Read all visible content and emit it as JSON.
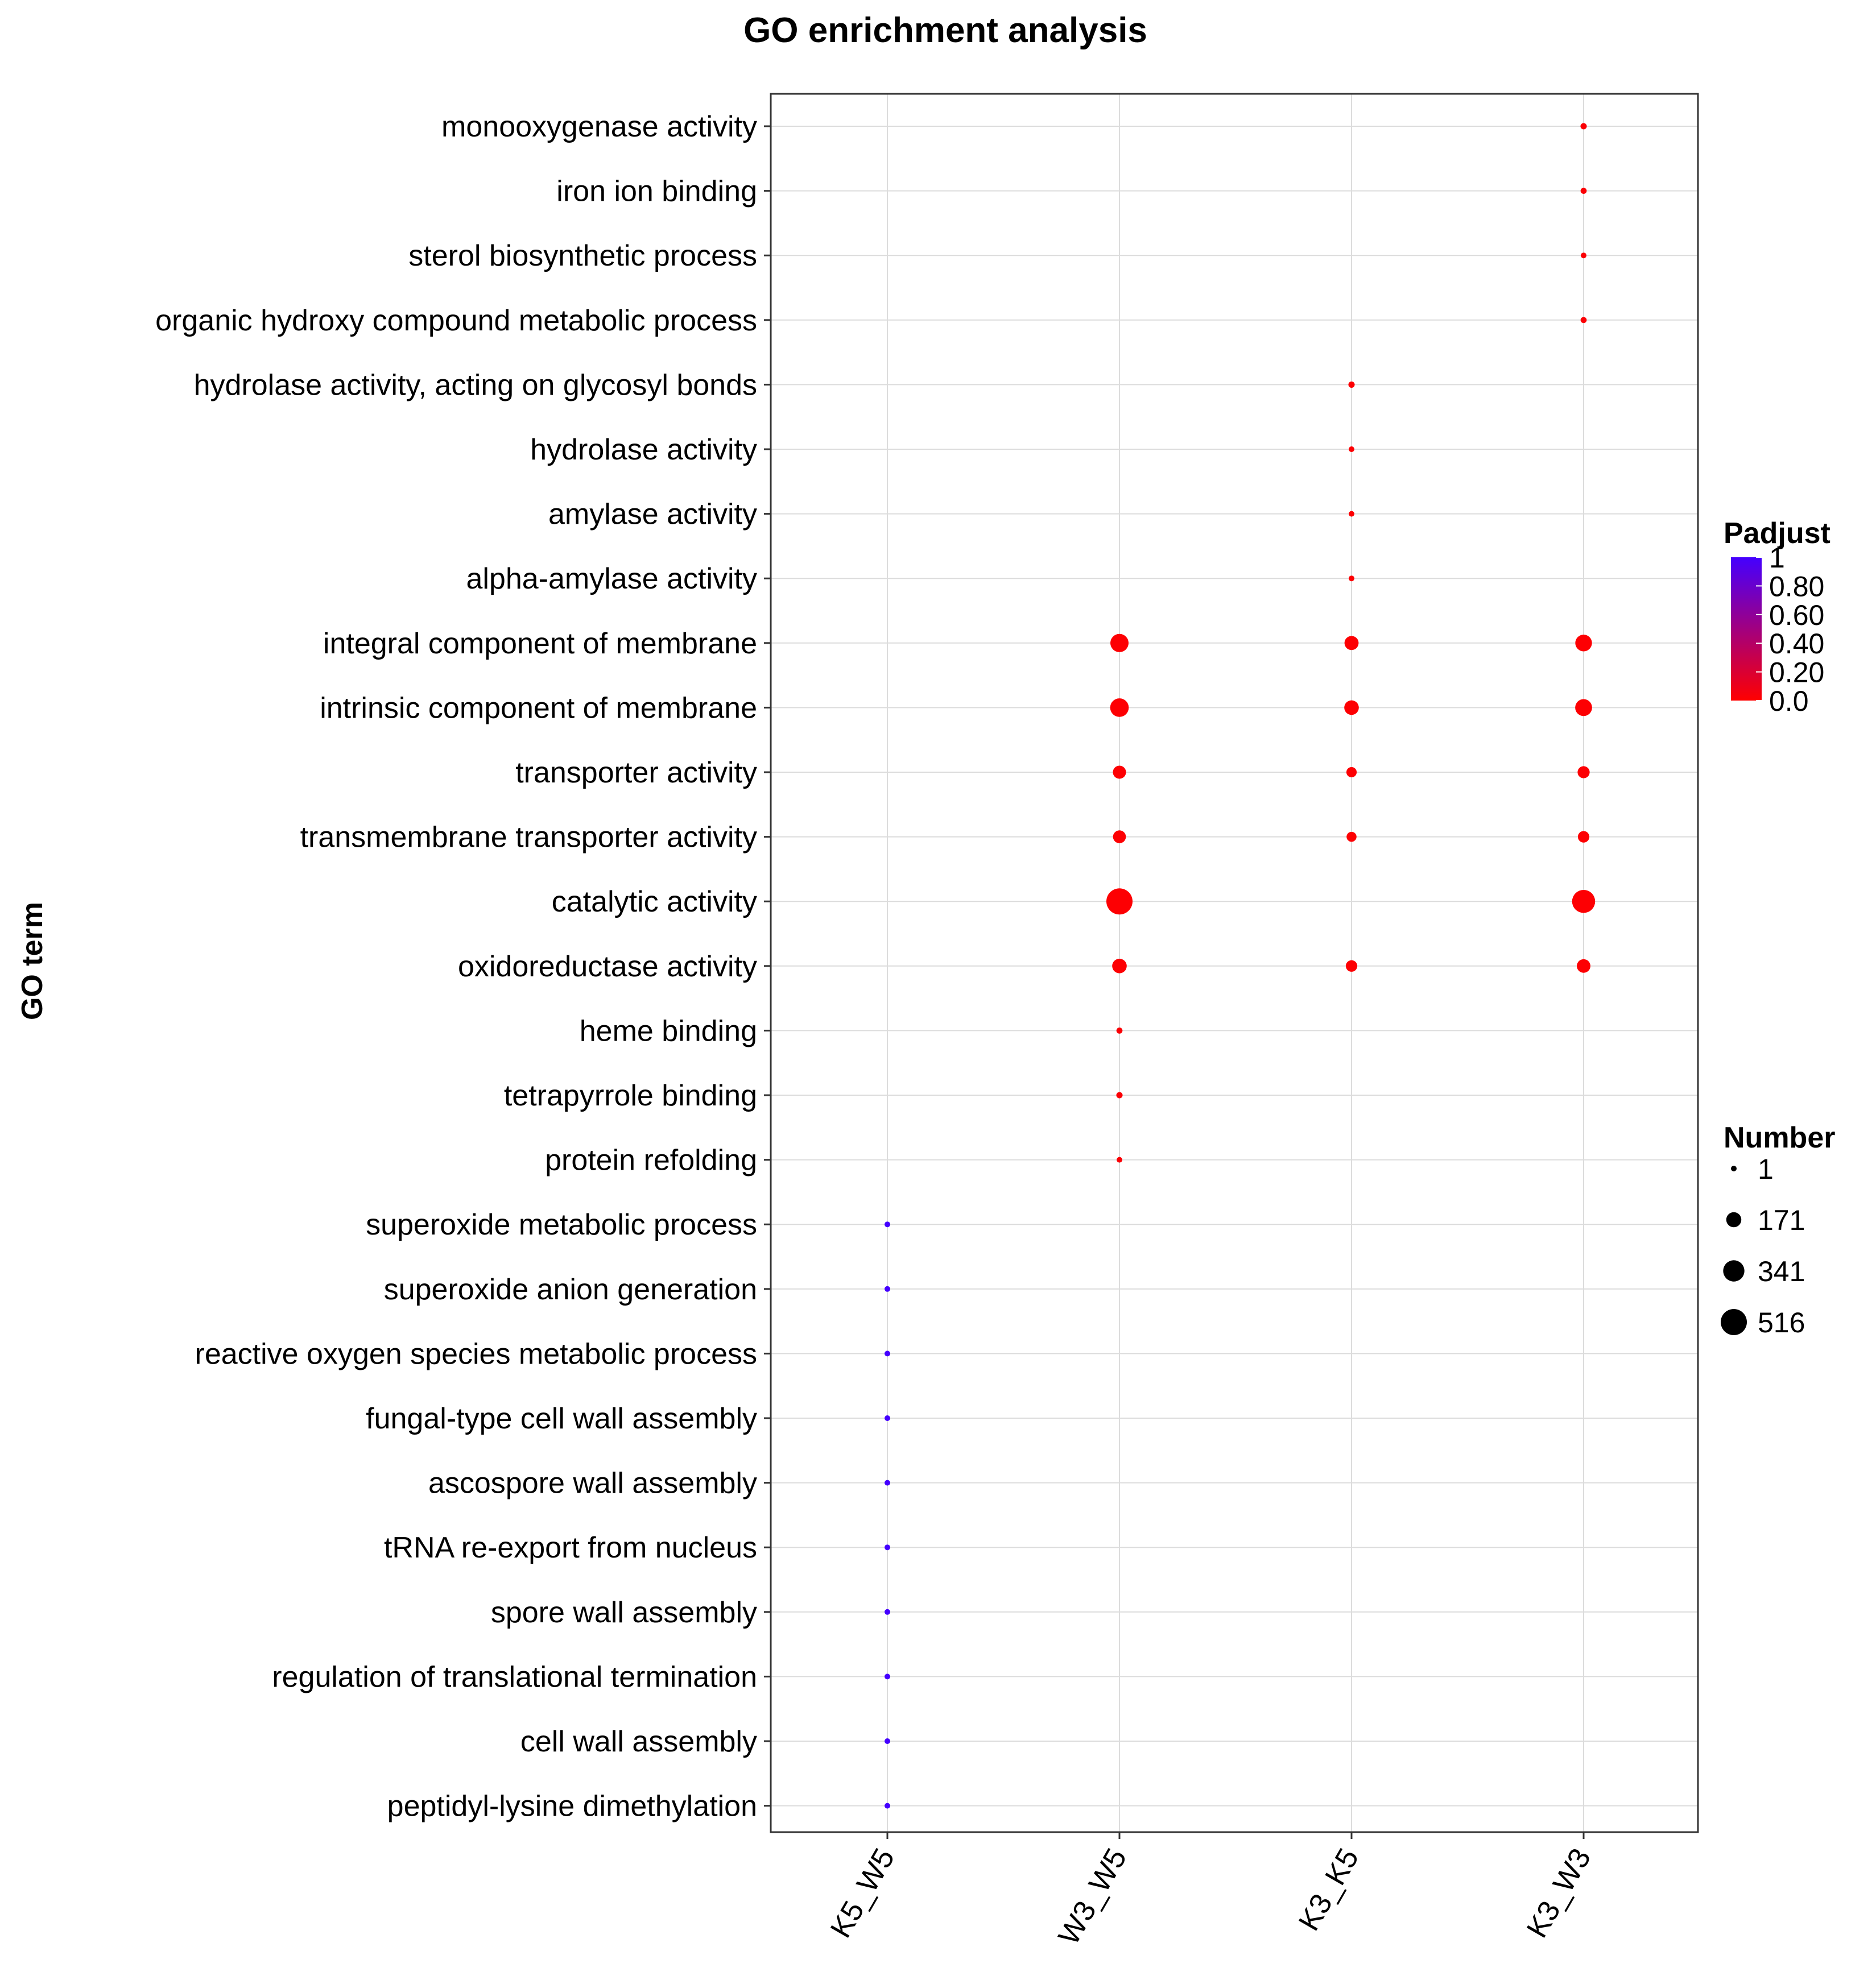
{
  "chart_data": {
    "type": "scatter",
    "title": "GO enrichment analysis",
    "xlabel": "",
    "ylabel": "GO term",
    "categories_x": [
      "K5_W5",
      "W3_W5",
      "K3_K5",
      "K3_W3"
    ],
    "categories_y": [
      "monooxygenase activity",
      "iron ion binding",
      "sterol biosynthetic process",
      "organic hydroxy compound metabolic process",
      "hydrolase activity, acting on glycosyl bonds",
      "hydrolase activity",
      "amylase activity",
      "alpha-amylase activity",
      "integral component of membrane",
      "intrinsic component of membrane",
      "transporter activity",
      "transmembrane transporter activity",
      "catalytic activity",
      "oxidoreductase activity",
      "heme binding",
      "tetrapyrrole binding",
      "protein refolding",
      "superoxide metabolic process",
      "superoxide anion generation",
      "reactive oxygen species metabolic process",
      "fungal-type cell wall assembly",
      "ascospore wall assembly",
      "tRNA re-export from nucleus",
      "spore wall assembly",
      "regulation of translational termination",
      "cell wall assembly",
      "peptidyl-lysine dimethylation"
    ],
    "points": [
      {
        "x": "K3_W3",
        "y": "monooxygenase activity",
        "number": 30,
        "padjust": 0.02
      },
      {
        "x": "K3_W3",
        "y": "iron ion binding",
        "number": 28,
        "padjust": 0.02
      },
      {
        "x": "K3_W3",
        "y": "sterol biosynthetic process",
        "number": 20,
        "padjust": 0.02
      },
      {
        "x": "K3_W3",
        "y": "organic hydroxy compound metabolic process",
        "number": 28,
        "padjust": 0.02
      },
      {
        "x": "K3_K5",
        "y": "hydrolase activity, acting on glycosyl bonds",
        "number": 30,
        "padjust": 0.01
      },
      {
        "x": "K3_K5",
        "y": "hydrolase activity",
        "number": 22,
        "padjust": 0.01
      },
      {
        "x": "K3_K5",
        "y": "amylase activity",
        "number": 8,
        "padjust": 0.01
      },
      {
        "x": "K3_K5",
        "y": "alpha-amylase activity",
        "number": 6,
        "padjust": 0.01
      },
      {
        "x": "W3_W5",
        "y": "integral component of membrane",
        "number": 250,
        "padjust": 0.01
      },
      {
        "x": "K3_K5",
        "y": "integral component of membrane",
        "number": 150,
        "padjust": 0.01
      },
      {
        "x": "K3_W3",
        "y": "integral component of membrane",
        "number": 210,
        "padjust": 0.01
      },
      {
        "x": "W3_W5",
        "y": "intrinsic component of membrane",
        "number": 260,
        "padjust": 0.01
      },
      {
        "x": "K3_K5",
        "y": "intrinsic component of membrane",
        "number": 160,
        "padjust": 0.01
      },
      {
        "x": "K3_W3",
        "y": "intrinsic component of membrane",
        "number": 215,
        "padjust": 0.01
      },
      {
        "x": "W3_W5",
        "y": "transporter activity",
        "number": 130,
        "padjust": 0.01
      },
      {
        "x": "K3_K5",
        "y": "transporter activity",
        "number": 80,
        "padjust": 0.01
      },
      {
        "x": "K3_W3",
        "y": "transporter activity",
        "number": 110,
        "padjust": 0.01
      },
      {
        "x": "W3_W5",
        "y": "transmembrane transporter activity",
        "number": 125,
        "padjust": 0.01
      },
      {
        "x": "K3_K5",
        "y": "transmembrane transporter activity",
        "number": 75,
        "padjust": 0.01
      },
      {
        "x": "K3_W3",
        "y": "transmembrane transporter activity",
        "number": 100,
        "padjust": 0.01
      },
      {
        "x": "W3_W5",
        "y": "catalytic activity",
        "number": 516,
        "padjust": 0.01
      },
      {
        "x": "K3_W3",
        "y": "catalytic activity",
        "number": 400,
        "padjust": 0.01
      },
      {
        "x": "W3_W5",
        "y": "oxidoreductase activity",
        "number": 160,
        "padjust": 0.01
      },
      {
        "x": "K3_K5",
        "y": "oxidoreductase activity",
        "number": 100,
        "padjust": 0.01
      },
      {
        "x": "K3_W3",
        "y": "oxidoreductase activity",
        "number": 140,
        "padjust": 0.01
      },
      {
        "x": "W3_W5",
        "y": "heme binding",
        "number": 28,
        "padjust": 0.02
      },
      {
        "x": "W3_W5",
        "y": "tetrapyrrole binding",
        "number": 30,
        "padjust": 0.02
      },
      {
        "x": "W3_W5",
        "y": "protein refolding",
        "number": 7,
        "padjust": 0.02
      },
      {
        "x": "K5_W5",
        "y": "superoxide metabolic process",
        "number": 3,
        "padjust": 1.0
      },
      {
        "x": "K5_W5",
        "y": "superoxide anion generation",
        "number": 2,
        "padjust": 1.0
      },
      {
        "x": "K5_W5",
        "y": "reactive oxygen species metabolic process",
        "number": 3,
        "padjust": 1.0
      },
      {
        "x": "K5_W5",
        "y": "fungal-type cell wall assembly",
        "number": 2,
        "padjust": 1.0
      },
      {
        "x": "K5_W5",
        "y": "ascospore wall assembly",
        "number": 2,
        "padjust": 1.0
      },
      {
        "x": "K5_W5",
        "y": "tRNA re-export from nucleus",
        "number": 1,
        "padjust": 1.0
      },
      {
        "x": "K5_W5",
        "y": "spore wall assembly",
        "number": 2,
        "padjust": 1.0
      },
      {
        "x": "K5_W5",
        "y": "regulation of translational termination",
        "number": 1,
        "padjust": 1.0
      },
      {
        "x": "K5_W5",
        "y": "cell wall assembly",
        "number": 3,
        "padjust": 1.0
      },
      {
        "x": "K5_W5",
        "y": "peptidyl-lysine dimethylation",
        "number": 1,
        "padjust": 1.0
      }
    ],
    "size_scale": {
      "min": 1,
      "max": 516
    },
    "color_scale": {
      "min": 0.0,
      "max": 1,
      "low_color": "#ff0000",
      "high_color": "#4400ff"
    },
    "legend_color": {
      "title": "Padjust",
      "labels": [
        "1",
        "0.80",
        "0.60",
        "0.40",
        "0.20",
        "0.0"
      ],
      "values": [
        1,
        0.8,
        0.6,
        0.4,
        0.2,
        0.0
      ]
    },
    "legend_size": {
      "title": "Number",
      "labels": [
        "1",
        "171",
        "341",
        "516"
      ],
      "values": [
        1,
        171,
        341,
        516
      ]
    },
    "grid": true,
    "legend_position": "right"
  }
}
